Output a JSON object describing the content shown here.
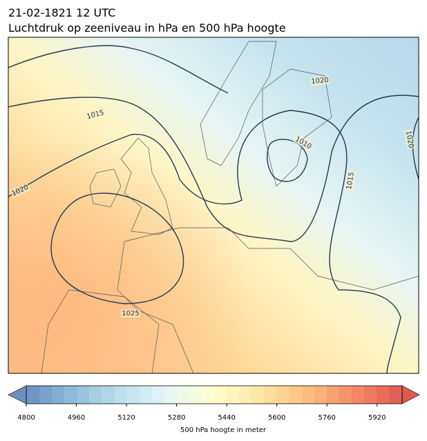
{
  "header": {
    "title": "21-02-1821 12 UTC",
    "subtitle": "Luchtdruk op zeeniveau in hPa en 500 hPa hoogte"
  },
  "isobar_labels": [
    1015,
    1020,
    1010,
    1020,
    1015,
    1020,
    1025
  ],
  "colorbar": {
    "label": "500 hPa hoogte in meter",
    "lim": [
      4800,
      6000
    ],
    "step": 40,
    "ticks": [
      4800,
      4960,
      5120,
      5280,
      5440,
      5600,
      5760,
      5920
    ]
  }
}
